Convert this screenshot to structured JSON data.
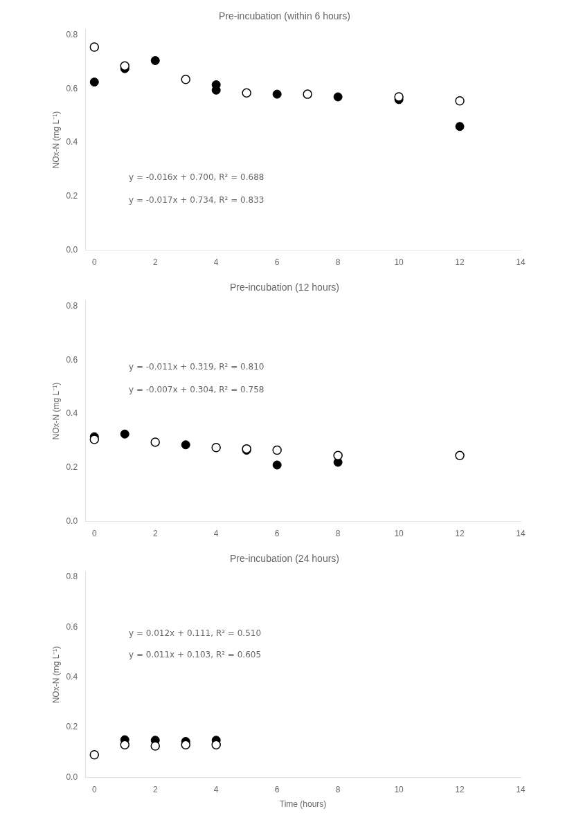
{
  "chart_data": [
    {
      "type": "scatter",
      "title": "Pre-incubation (within 6 hours)",
      "ylabel": "NOx-N (mg L⁻¹)",
      "xlim": [
        -0.3,
        14
      ],
      "ylim": [
        0.0,
        0.82
      ],
      "xticks": [
        0,
        2,
        4,
        6,
        8,
        10,
        12,
        14
      ],
      "yticks": [
        {
          "value": 0.0,
          "label": "0.0"
        },
        0.2,
        0.4,
        0.6,
        0.8
      ],
      "grid": false,
      "annotations": [
        "y = -0.016x + 0.700, R² = 0.688",
        "y = -0.017x + 0.734, R² = 0.833"
      ],
      "series": [
        {
          "marker": "circle_open",
          "color": "#000000",
          "x": [
            0,
            1,
            3,
            5,
            7,
            10,
            12
          ],
          "values": [
            0.755,
            0.685,
            0.635,
            0.585,
            0.58,
            0.57,
            0.555
          ]
        },
        {
          "marker": "circle",
          "color": "#000000",
          "x": [
            0,
            1,
            2,
            4,
            4,
            6,
            8,
            10,
            12
          ],
          "values": [
            0.625,
            0.675,
            0.705,
            0.595,
            0.615,
            0.58,
            0.57,
            0.56,
            0.46
          ]
        }
      ]
    },
    {
      "type": "scatter",
      "title": "Pre-incubation (12 hours)",
      "ylabel": "NOx-N (mg L⁻¹)",
      "xlim": [
        -0.3,
        14
      ],
      "ylim": [
        0.0,
        0.82
      ],
      "xticks": [
        0,
        2,
        4,
        6,
        8,
        10,
        12,
        14
      ],
      "yticks": [
        {
          "value": 0.0,
          "label": "0.0"
        },
        0.2,
        0.4,
        0.6,
        0.8
      ],
      "grid": false,
      "annotations": [
        "y = -0.011x + 0.319, R² = 0.810",
        "y = -0.007x + 0.304, R² = 0.758"
      ],
      "series": [
        {
          "marker": "circle_open",
          "color": "#000000",
          "x": [
            0,
            2,
            4,
            5,
            6,
            8,
            12
          ],
          "values": [
            0.305,
            0.295,
            0.275,
            0.27,
            0.265,
            0.245,
            0.245
          ]
        },
        {
          "marker": "circle",
          "color": "#000000",
          "x": [
            0,
            1,
            3,
            5,
            6,
            8
          ],
          "values": [
            0.315,
            0.325,
            0.285,
            0.265,
            0.21,
            0.22
          ]
        }
      ]
    },
    {
      "type": "scatter",
      "title": "Pre-incubation (24 hours)",
      "ylabel": "NOx-N (mg L⁻¹)",
      "xlabel": "Time (hours)",
      "xlim": [
        -0.3,
        14
      ],
      "ylim": [
        0.0,
        0.82
      ],
      "xticks": [
        0,
        2,
        4,
        6,
        8,
        10,
        12,
        14
      ],
      "yticks": [
        {
          "value": 0.0,
          "label": "0.0"
        },
        0.2,
        0.4,
        0.6,
        0.8
      ],
      "grid": false,
      "annotations": [
        "y = 0.012x + 0.111, R² = 0.510",
        "y = 0.011x + 0.103, R² = 0.605"
      ],
      "series": [
        {
          "marker": "circle_open",
          "color": "#000000",
          "x": [
            0,
            1,
            2,
            3,
            4
          ],
          "values": [
            0.09,
            0.13,
            0.125,
            0.13,
            0.13
          ]
        },
        {
          "marker": "circle",
          "color": "#000000",
          "x": [
            1,
            2,
            3,
            4
          ],
          "values": [
            0.15,
            0.148,
            0.143,
            0.148
          ]
        }
      ]
    }
  ]
}
